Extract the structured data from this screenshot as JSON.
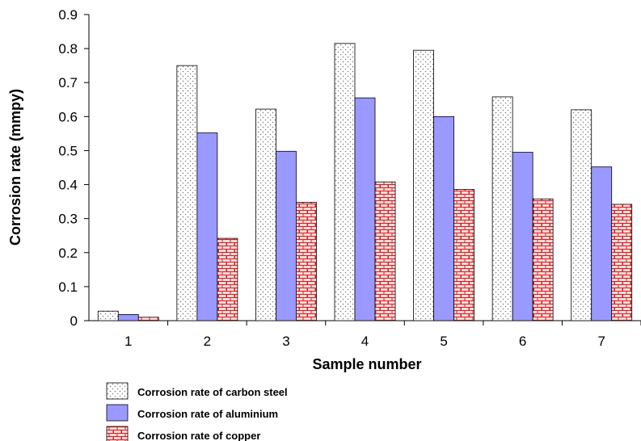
{
  "chart_data": {
    "type": "bar",
    "title": "",
    "xlabel": "Sample number",
    "ylabel": "Corrosion rate (mmpy)",
    "ylim": [
      0,
      0.9
    ],
    "yticks": [
      "0",
      "0.1",
      "0.2",
      "0.3",
      "0.4",
      "0.5",
      "0.6",
      "0.7",
      "0.8",
      "0.9"
    ],
    "grid": false,
    "legend_position": "bottom-left",
    "categories": [
      "1",
      "2",
      "3",
      "4",
      "5",
      "6",
      "7"
    ],
    "series": [
      {
        "name": "Corrosion rate of carbon steel",
        "values": [
          0.028,
          0.75,
          0.622,
          0.815,
          0.795,
          0.658,
          0.62
        ],
        "color": "#ffffff",
        "pattern": "dots"
      },
      {
        "name": "Corrosion rate of aluminium",
        "values": [
          0.018,
          0.552,
          0.498,
          0.655,
          0.6,
          0.495,
          0.452
        ],
        "color": "#9999ff",
        "pattern": "solid"
      },
      {
        "name": "Corrosion rate of copper",
        "values": [
          0.01,
          0.242,
          0.348,
          0.408,
          0.386,
          0.358,
          0.342
        ],
        "color": "#ffcccc",
        "pattern": "bricks"
      }
    ]
  }
}
